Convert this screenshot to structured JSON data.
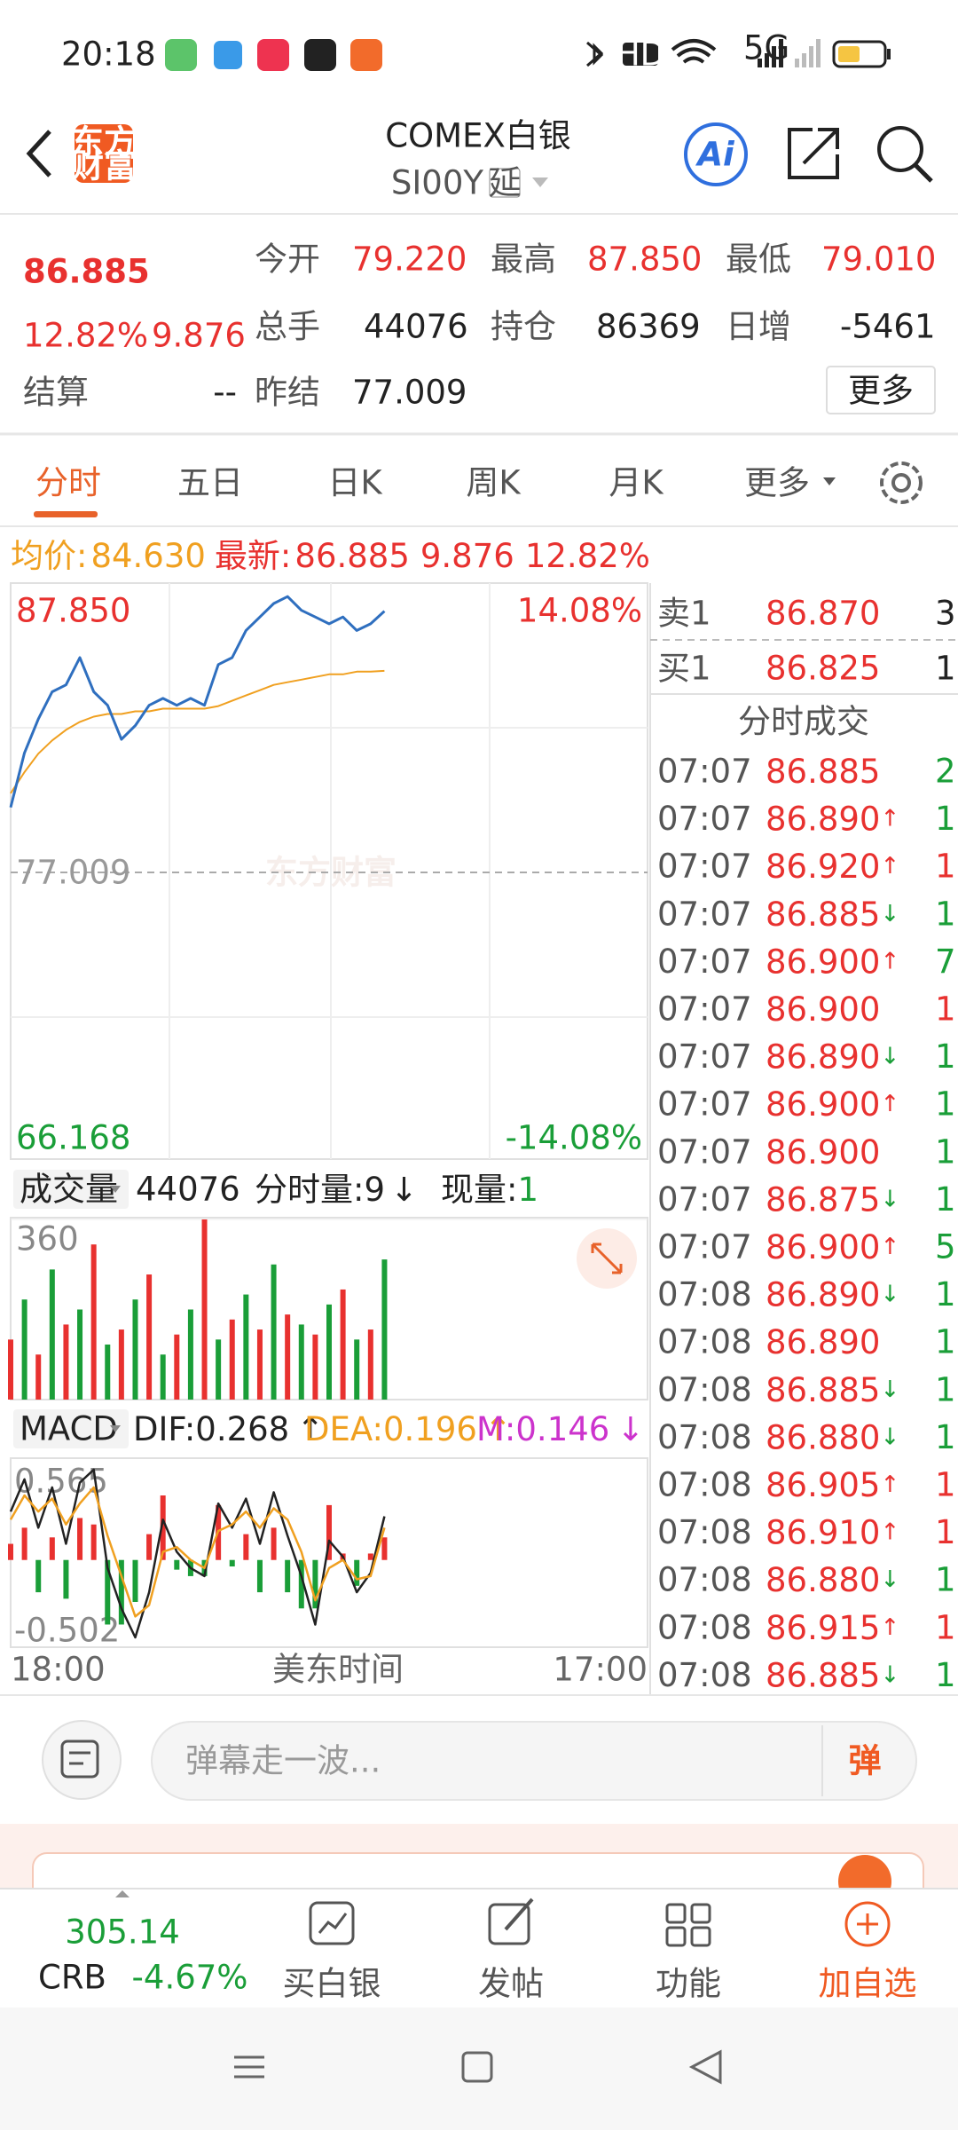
{
  "status": {
    "time": "20:18",
    "hd": "HD",
    "net": "5G"
  },
  "header": {
    "logo": [
      "东方",
      "财富"
    ],
    "title": "COMEX白银",
    "code": "SI00Y",
    "delay": "延",
    "ai": "Ai"
  },
  "quote": {
    "price": "86.885",
    "change_pct": "12.82%",
    "change": "9.876",
    "fields": [
      {
        "label": "今开",
        "value": "79.220"
      },
      {
        "label": "最高",
        "value": "87.850"
      },
      {
        "label": "最低",
        "value": "79.010"
      },
      {
        "label": "总手",
        "value": "44076"
      },
      {
        "label": "持仓",
        "value": "86369"
      },
      {
        "label": "日增",
        "value": "-5461"
      },
      {
        "label": "结算",
        "value": "--"
      },
      {
        "label": "昨结",
        "value": "77.009"
      }
    ],
    "more": "更多"
  },
  "tabs": [
    "分时",
    "五日",
    "日K",
    "周K",
    "月K",
    "更多"
  ],
  "info": {
    "avg_label": "均价:",
    "avg": "84.630",
    "last_label": "最新:",
    "last": "86.885",
    "change": "9.876",
    "pct": "12.82%"
  },
  "watermark": "东方财富",
  "chart_data": [
    {
      "type": "line",
      "x_label": "美东时间",
      "up_color": "#e8312f",
      "down_color": "#1a9e38",
      "flat_color": "#999999",
      "categories": [
        "18:00",
        null,
        null,
        null,
        null,
        null,
        null,
        null,
        null,
        null,
        null,
        null,
        null,
        null,
        null,
        null,
        null,
        null,
        null,
        null,
        null,
        null,
        null,
        null,
        null,
        null,
        null,
        null,
        null,
        null,
        null,
        null,
        null,
        null,
        null,
        null,
        null,
        null,
        null,
        null,
        null,
        null,
        null,
        null,
        null,
        null,
        "17:00"
      ],
      "series": [
        {
          "color": "#2f6fbf",
          "values": [
            79.47,
            81.53,
            82.81,
            83.84,
            84.1,
            85.13,
            83.84,
            83.33,
            82.04,
            82.56,
            83.33,
            83.59,
            83.33,
            83.59,
            83.33,
            84.87,
            85.13,
            86.16,
            86.67,
            87.18,
            87.44,
            86.92,
            86.67,
            86.41,
            86.67,
            86.16,
            86.41,
            86.89,
            null,
            null,
            null,
            null,
            null,
            null,
            null,
            null,
            null,
            null,
            null,
            null,
            null,
            null,
            null,
            null,
            null,
            null,
            null
          ]
        },
        {
          "color": "#f0a020",
          "values": [
            80,
            80.8,
            81.5,
            82,
            82.4,
            82.7,
            82.9,
            83,
            83,
            83.1,
            83.1,
            83.2,
            83.2,
            83.2,
            83.2,
            83.3,
            83.5,
            83.7,
            83.9,
            84.1,
            84.2,
            84.3,
            84.4,
            84.5,
            84.5,
            84.6,
            84.6,
            84.63,
            null,
            null,
            null,
            null,
            null,
            null,
            null,
            null,
            null,
            null,
            null,
            null,
            null,
            null,
            null,
            null,
            null,
            null,
            null
          ]
        }
      ],
      "ylim": [
        66.168,
        87.85
      ],
      "yticks": [
        66.168,
        77.009,
        {
          "value": 87.85,
          "label": "87.850"
        }
      ],
      "y2lim": [
        -14.08,
        14.08
      ],
      "y2ticks": [
        {
          "value": -14.08,
          "label": "-14.08%"
        },
        {
          "value": 14.08,
          "label": "14.08%"
        }
      ]
    },
    {
      "type": "bar",
      "label": "成交量",
      "total": "44076",
      "period_label": "分时量:",
      "period_value": "9",
      "period_arrow": "↓",
      "now_label": "现量:",
      "now_value": "1",
      "values": [
        120,
        200,
        90,
        260,
        150,
        180,
        310,
        110,
        140,
        200,
        250,
        90,
        130,
        180,
        360,
        120,
        160,
        210,
        140,
        270,
        170,
        150,
        130,
        190,
        220,
        120,
        140,
        280,
        null,
        null,
        null,
        null,
        null,
        null,
        null,
        null,
        null,
        null,
        null,
        null,
        null,
        null,
        null,
        null,
        null,
        null,
        null
      ],
      "colors": [
        "#e8312f",
        "#1a9e38",
        "#e8312f",
        "#1a9e38",
        "#e8312f",
        "#1a9e38",
        "#e8312f",
        "#1a9e38",
        "#e8312f",
        "#1a9e38",
        "#e8312f",
        "#1a9e38",
        "#e8312f",
        "#1a9e38",
        "#e8312f",
        "#1a9e38",
        "#e8312f",
        "#1a9e38",
        "#e8312f",
        "#1a9e38",
        "#e8312f",
        "#1a9e38",
        "#e8312f",
        "#1a9e38",
        "#e8312f",
        "#1a9e38",
        "#e8312f",
        "#1a9e38",
        null,
        null,
        null,
        null,
        null,
        null,
        null,
        null,
        null,
        null,
        null,
        null,
        null,
        null,
        null,
        null,
        null,
        null,
        null
      ],
      "ylim": [
        0,
        360
      ],
      "yticks": [
        360
      ]
    },
    {
      "type": "macd",
      "label": "MACD",
      "series": [
        {
          "label": "DIF:",
          "latest": "0.268",
          "arrow": "↑",
          "color": "#222222",
          "values": [
            0.3,
            0.5,
            0.2,
            0.45,
            0.1,
            0.48,
            0.56,
            -0.05,
            -0.3,
            -0.48,
            -0.2,
            0.25,
            0.05,
            -0.05,
            -0.1,
            0.35,
            0.2,
            0.38,
            0.1,
            0.42,
            0.15,
            -0.1,
            -0.4,
            0.12,
            0.02,
            -0.2,
            -0.08,
            0.27,
            null,
            null,
            null,
            null,
            null,
            null,
            null,
            null,
            null,
            null,
            null,
            null,
            null,
            null,
            null,
            null,
            null,
            null,
            null
          ]
        },
        {
          "label": "DEA:",
          "latest": "0.196",
          "arrow": "↑",
          "color": "#f0a020",
          "values": [
            0.25,
            0.4,
            0.3,
            0.38,
            0.22,
            0.35,
            0.45,
            0.15,
            -0.1,
            -0.35,
            -0.28,
            0.05,
            0.08,
            0,
            -0.05,
            0.18,
            0.22,
            0.3,
            0.2,
            0.32,
            0.25,
            0.05,
            -0.25,
            -0.05,
            0,
            -0.12,
            -0.1,
            0.2,
            null,
            null,
            null,
            null,
            null,
            null,
            null,
            null,
            null,
            null,
            null,
            null,
            null,
            null,
            null,
            null,
            null,
            null,
            null
          ]
        }
      ],
      "bars": {
        "label": "M:",
        "latest": "0.146",
        "arrow": "↓",
        "color": "#cc33cc",
        "bar_colors": [
          "#e8312f",
          "#1a9e38"
        ],
        "values": [
          0.1,
          0.2,
          -0.2,
          0.14,
          -0.24,
          0.26,
          0.22,
          -0.4,
          -0.4,
          -0.26,
          0.16,
          0.4,
          -0.06,
          -0.1,
          -0.1,
          0.34,
          -0.04,
          0.16,
          -0.2,
          0.2,
          -0.2,
          -0.3,
          -0.3,
          0.34,
          0.04,
          -0.16,
          0.04,
          0.14,
          null,
          null,
          null,
          null,
          null,
          null,
          null,
          null,
          null,
          null,
          null,
          null,
          null,
          null,
          null,
          null,
          null,
          null,
          null
        ]
      },
      "ylim": [
        -0.502,
        0.565
      ],
      "yticks": [
        -0.502,
        0.565
      ]
    }
  ],
  "orderbook": {
    "asks": [
      {
        "label": "卖1",
        "price": "86.870",
        "vol": "3"
      }
    ],
    "bids": [
      {
        "label": "买1",
        "price": "86.825",
        "vol": "1"
      }
    ],
    "title": "分时成交",
    "trades": [
      {
        "time": "07:07",
        "price": "86.885",
        "vol": "2",
        "vol_color": "#1a9e38"
      },
      {
        "time": "07:07",
        "price": "86.890",
        "arrow": "↑",
        "vol": "1",
        "vol_color": "#1a9e38"
      },
      {
        "time": "07:07",
        "price": "86.920",
        "arrow": "↑",
        "vol": "1",
        "vol_color": "#e8312f"
      },
      {
        "time": "07:07",
        "price": "86.885",
        "arrow": "↓",
        "vol": "1",
        "vol_color": "#1a9e38"
      },
      {
        "time": "07:07",
        "price": "86.900",
        "arrow": "↑",
        "vol": "7",
        "vol_color": "#1a9e38"
      },
      {
        "time": "07:07",
        "price": "86.900",
        "vol": "1",
        "vol_color": "#e8312f"
      },
      {
        "time": "07:07",
        "price": "86.890",
        "arrow": "↓",
        "vol": "1",
        "vol_color": "#1a9e38"
      },
      {
        "time": "07:07",
        "price": "86.900",
        "arrow": "↑",
        "vol": "1",
        "vol_color": "#1a9e38"
      },
      {
        "time": "07:07",
        "price": "86.900",
        "vol": "1",
        "vol_color": "#1a9e38"
      },
      {
        "time": "07:07",
        "price": "86.875",
        "arrow": "↓",
        "vol": "1",
        "vol_color": "#1a9e38"
      },
      {
        "time": "07:07",
        "price": "86.900",
        "arrow": "↑",
        "vol": "5",
        "vol_color": "#1a9e38"
      },
      {
        "time": "07:08",
        "price": "86.890",
        "arrow": "↓",
        "vol": "1",
        "vol_color": "#1a9e38"
      },
      {
        "time": "07:08",
        "price": "86.890",
        "vol": "1",
        "vol_color": "#1a9e38"
      },
      {
        "time": "07:08",
        "price": "86.885",
        "arrow": "↓",
        "vol": "1",
        "vol_color": "#1a9e38"
      },
      {
        "time": "07:08",
        "price": "86.880",
        "arrow": "↓",
        "vol": "1",
        "vol_color": "#1a9e38"
      },
      {
        "time": "07:08",
        "price": "86.905",
        "arrow": "↑",
        "vol": "1",
        "vol_color": "#e8312f"
      },
      {
        "time": "07:08",
        "price": "86.910",
        "arrow": "↑",
        "vol": "1",
        "vol_color": "#e8312f"
      },
      {
        "time": "07:08",
        "price": "86.880",
        "arrow": "↓",
        "vol": "1",
        "vol_color": "#1a9e38"
      },
      {
        "time": "07:08",
        "price": "86.915",
        "arrow": "↑",
        "vol": "1",
        "vol_color": "#e8312f"
      },
      {
        "time": "07:08",
        "price": "86.885",
        "arrow": "↓",
        "vol": "1",
        "vol_color": "#1a9e38"
      }
    ]
  },
  "comment": {
    "placeholder": "弹幕走一波...",
    "button": "弹"
  },
  "bottom": {
    "index": {
      "value": "305.14",
      "name": "CRB",
      "change": "-4.67%"
    },
    "items": [
      "买白银",
      "发帖",
      "功能",
      "加自选"
    ]
  }
}
